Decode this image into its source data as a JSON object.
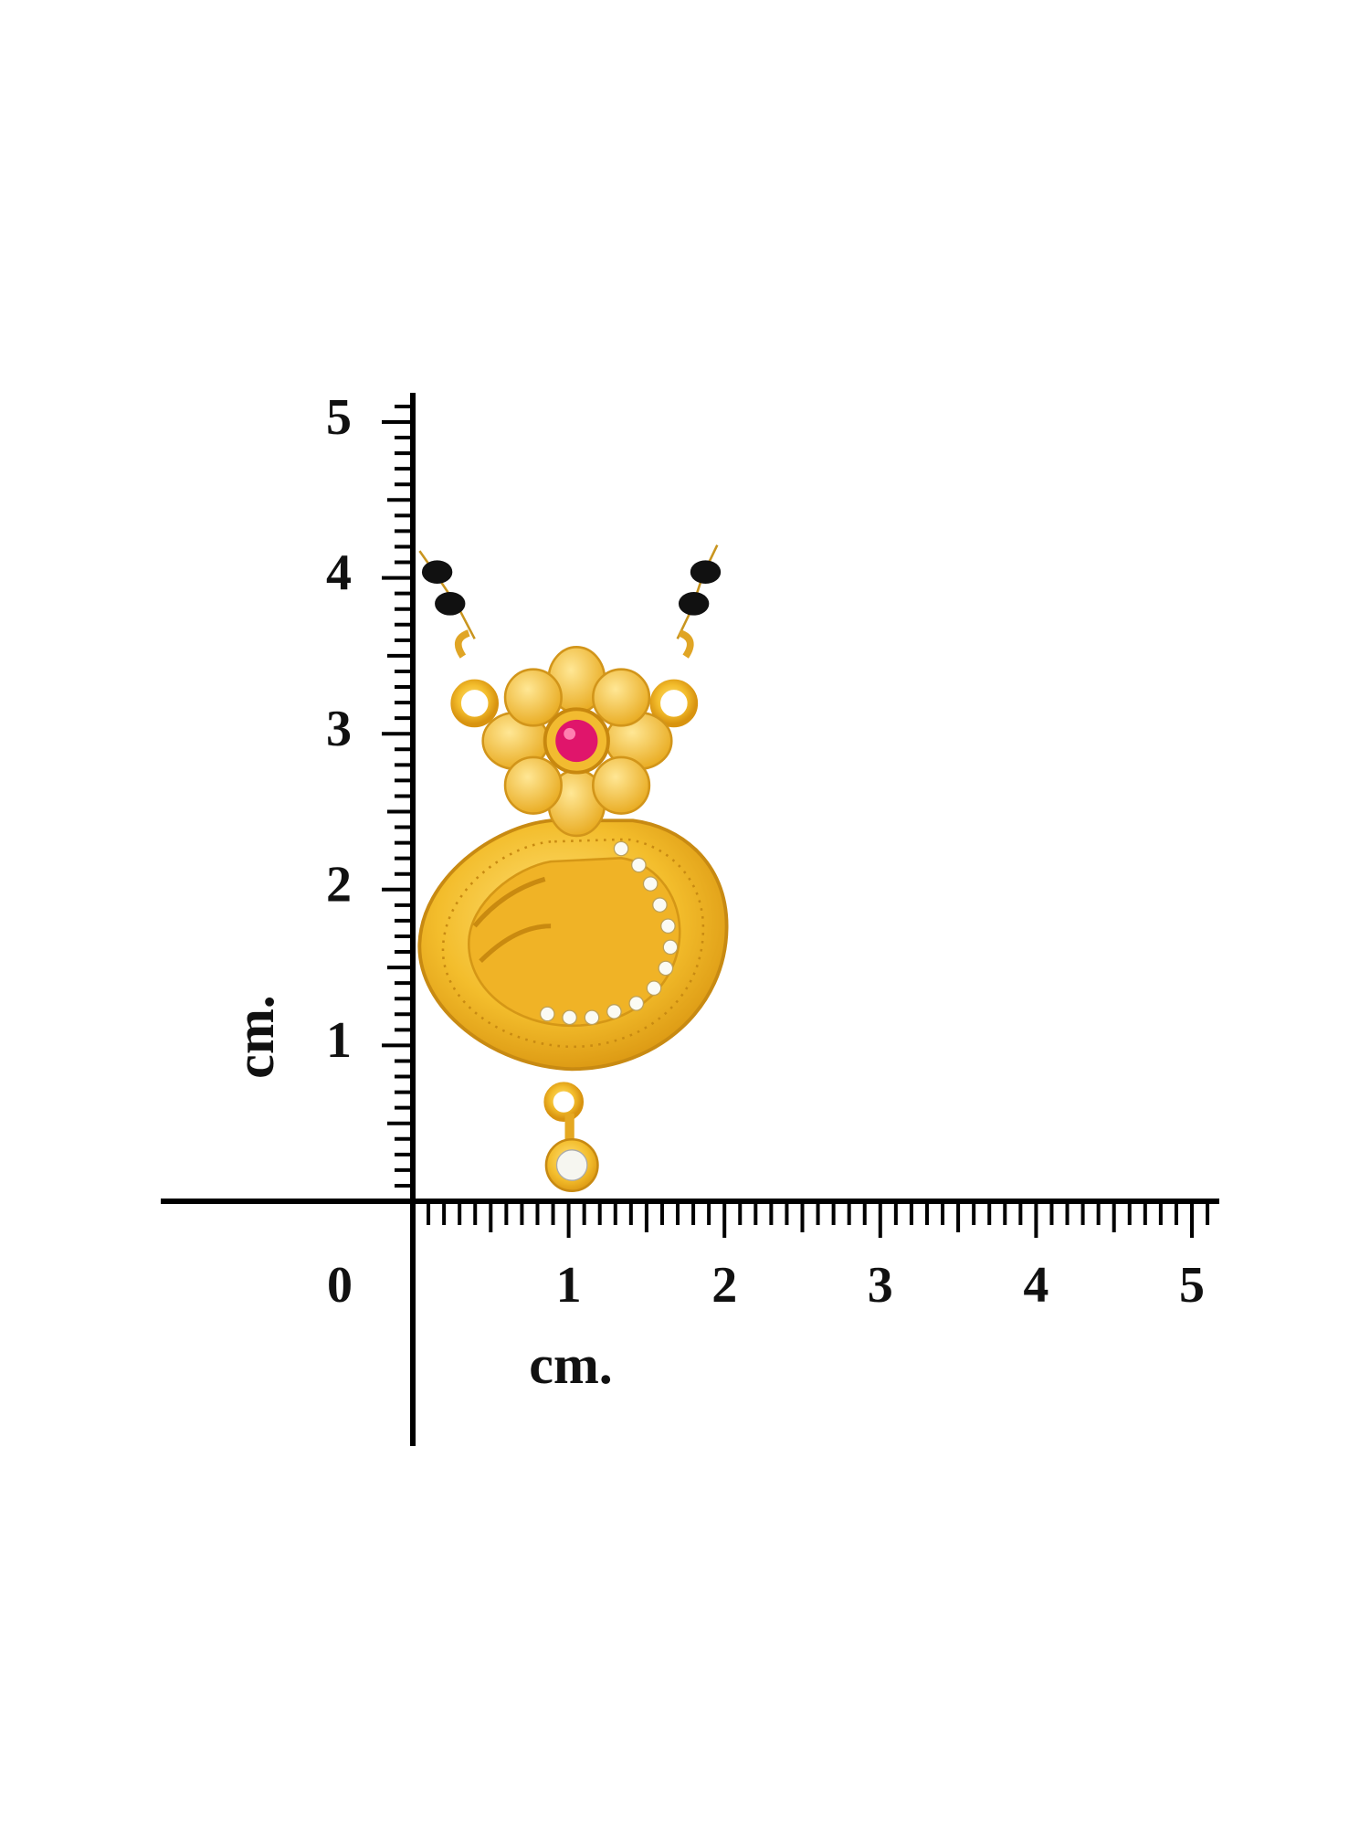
{
  "y_axis": {
    "labels": [
      1,
      2,
      3,
      4,
      5
    ],
    "unit": "cm."
  },
  "x_axis": {
    "labels": [
      0,
      1,
      2,
      3,
      4,
      5
    ],
    "unit": "cm."
  }
}
